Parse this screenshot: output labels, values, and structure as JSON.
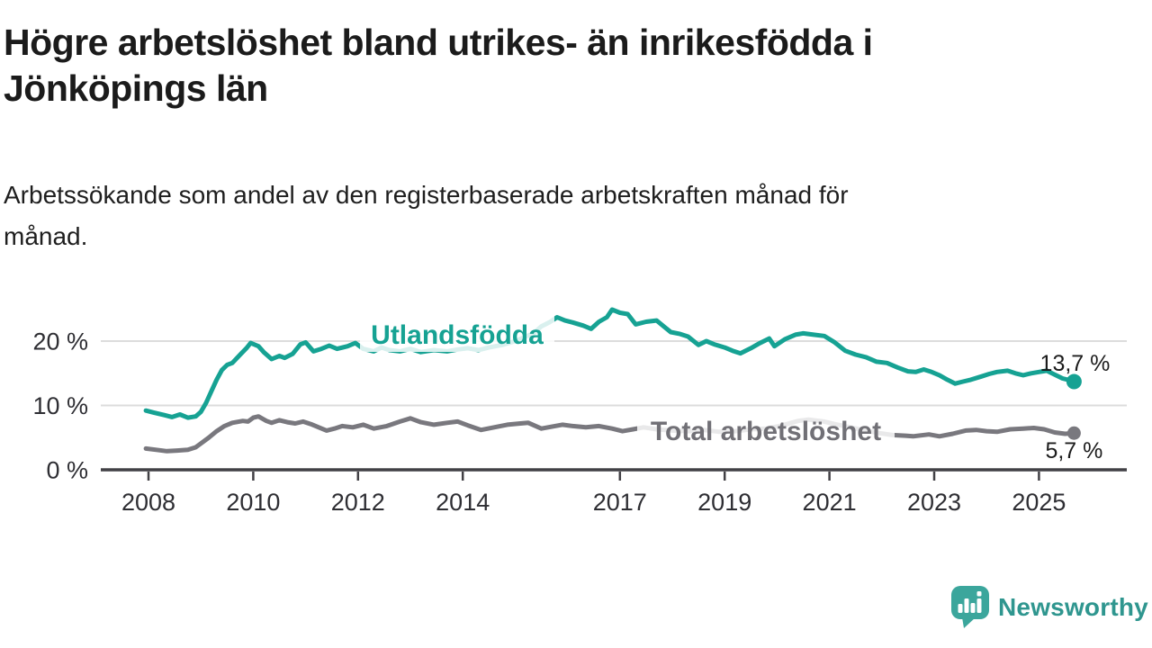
{
  "title": {
    "lines": [
      "Högre arbetslöshet bland utrikes- än inrikesfödda i",
      "Jönköpings län"
    ]
  },
  "subtitle": {
    "lines": [
      "Arbetssökande som andel av den registerbaserade arbetskraften månad för",
      "månad."
    ]
  },
  "branding": {
    "name": "Newsworthy",
    "icon": "speech-bubble-bar-chart-icon",
    "text_color": "#2f968f",
    "icon_color": "#3ba69c"
  },
  "colors": {
    "foreign_born_line": "#16a293",
    "total_line": "#79787e",
    "total_label": "#717076",
    "grid": "#dcdcdc",
    "axis": "#414045"
  },
  "chart_data": {
    "type": "line",
    "title": "Högre arbetslöshet bland utrikes- än inrikesfödda i Jönköpings län",
    "subtitle": "Arbetssökande som andel av den registerbaserade arbetskraften månad för månad.",
    "unit": "%",
    "grid": "horizontal",
    "legend_position": "inline-labels",
    "x_axis": {
      "tick_years": [
        2008,
        2010,
        2012,
        2014,
        2017,
        2019,
        2021,
        2023,
        2025
      ],
      "tick_labels": [
        "2008",
        "2010",
        "2012",
        "2014",
        "2017",
        "2019",
        "2021",
        "2023",
        "2025"
      ],
      "range": [
        2007.1,
        2026.7
      ]
    },
    "y_axis": {
      "ticks": [
        0,
        10,
        20
      ],
      "tick_labels": [
        "0 %",
        "10 %",
        "20 %"
      ],
      "range": [
        0,
        26
      ]
    },
    "series": [
      {
        "name": "Utlandsfödda",
        "color": "#16a293",
        "end_label": "13,7 %",
        "end_value": 13.7,
        "points": [
          [
            2007.95,
            9.2
          ],
          [
            2008.1,
            8.9
          ],
          [
            2008.3,
            8.5
          ],
          [
            2008.45,
            8.2
          ],
          [
            2008.6,
            8.6
          ],
          [
            2008.75,
            8.1
          ],
          [
            2008.9,
            8.3
          ],
          [
            2009.0,
            9.0
          ],
          [
            2009.1,
            10.4
          ],
          [
            2009.2,
            12.2
          ],
          [
            2009.3,
            14.0
          ],
          [
            2009.4,
            15.5
          ],
          [
            2009.5,
            16.3
          ],
          [
            2009.6,
            16.6
          ],
          [
            2009.75,
            17.9
          ],
          [
            2009.87,
            18.9
          ],
          [
            2009.95,
            19.7
          ],
          [
            2010.1,
            19.2
          ],
          [
            2010.2,
            18.3
          ],
          [
            2010.35,
            17.2
          ],
          [
            2010.5,
            17.7
          ],
          [
            2010.6,
            17.4
          ],
          [
            2010.75,
            18.0
          ],
          [
            2010.9,
            19.5
          ],
          [
            2011.0,
            19.8
          ],
          [
            2011.15,
            18.4
          ],
          [
            2011.3,
            18.8
          ],
          [
            2011.45,
            19.3
          ],
          [
            2011.6,
            18.8
          ],
          [
            2011.8,
            19.2
          ],
          [
            2011.95,
            19.7
          ],
          [
            2012.1,
            18.8
          ],
          [
            2012.3,
            18.4
          ],
          [
            2012.45,
            19.0
          ],
          [
            2012.6,
            18.6
          ],
          [
            2012.8,
            18.4
          ],
          [
            2013.0,
            18.8
          ],
          [
            2013.2,
            18.3
          ],
          [
            2013.45,
            18.6
          ],
          [
            2013.7,
            18.4
          ],
          [
            2013.9,
            18.7
          ],
          [
            2014.1,
            18.9
          ],
          [
            2014.3,
            18.6
          ],
          [
            2014.5,
            19.0
          ],
          [
            2014.75,
            19.4
          ],
          [
            2015.0,
            20.0
          ],
          [
            2015.2,
            20.7
          ],
          [
            2015.35,
            21.2
          ],
          [
            2015.5,
            22.3
          ],
          [
            2015.65,
            22.9
          ],
          [
            2015.8,
            23.7
          ],
          [
            2015.95,
            23.2
          ],
          [
            2016.1,
            22.9
          ],
          [
            2016.3,
            22.4
          ],
          [
            2016.45,
            21.9
          ],
          [
            2016.6,
            23.0
          ],
          [
            2016.75,
            23.7
          ],
          [
            2016.85,
            24.9
          ],
          [
            2017.0,
            24.4
          ],
          [
            2017.15,
            24.2
          ],
          [
            2017.3,
            22.6
          ],
          [
            2017.5,
            23.0
          ],
          [
            2017.7,
            23.2
          ],
          [
            2017.85,
            22.2
          ],
          [
            2017.97,
            21.4
          ],
          [
            2018.15,
            21.1
          ],
          [
            2018.3,
            20.7
          ],
          [
            2018.5,
            19.4
          ],
          [
            2018.65,
            20.0
          ],
          [
            2018.8,
            19.5
          ],
          [
            2019.0,
            19.0
          ],
          [
            2019.15,
            18.5
          ],
          [
            2019.3,
            18.1
          ],
          [
            2019.5,
            18.9
          ],
          [
            2019.65,
            19.6
          ],
          [
            2019.85,
            20.4
          ],
          [
            2019.95,
            19.2
          ],
          [
            2020.15,
            20.3
          ],
          [
            2020.35,
            21.0
          ],
          [
            2020.5,
            21.2
          ],
          [
            2020.7,
            21.0
          ],
          [
            2020.9,
            20.8
          ],
          [
            2021.1,
            19.8
          ],
          [
            2021.3,
            18.5
          ],
          [
            2021.5,
            17.9
          ],
          [
            2021.7,
            17.5
          ],
          [
            2021.9,
            16.8
          ],
          [
            2022.1,
            16.6
          ],
          [
            2022.3,
            15.9
          ],
          [
            2022.5,
            15.3
          ],
          [
            2022.65,
            15.2
          ],
          [
            2022.8,
            15.6
          ],
          [
            2022.95,
            15.2
          ],
          [
            2023.1,
            14.7
          ],
          [
            2023.25,
            14.0
          ],
          [
            2023.4,
            13.4
          ],
          [
            2023.55,
            13.7
          ],
          [
            2023.7,
            14.0
          ],
          [
            2023.9,
            14.5
          ],
          [
            2024.05,
            14.9
          ],
          [
            2024.2,
            15.2
          ],
          [
            2024.4,
            15.4
          ],
          [
            2024.55,
            15.0
          ],
          [
            2024.7,
            14.7
          ],
          [
            2024.85,
            15.0
          ],
          [
            2025.0,
            15.2
          ],
          [
            2025.15,
            15.4
          ],
          [
            2025.3,
            14.8
          ],
          [
            2025.45,
            14.2
          ],
          [
            2025.55,
            14.0
          ],
          [
            2025.67,
            13.7
          ]
        ]
      },
      {
        "name": "Total arbetslöshet",
        "color": "#79787e",
        "end_label": "5,7 %",
        "end_value": 5.7,
        "points": [
          [
            2007.95,
            3.3
          ],
          [
            2008.15,
            3.1
          ],
          [
            2008.35,
            2.9
          ],
          [
            2008.55,
            3.0
          ],
          [
            2008.75,
            3.1
          ],
          [
            2008.9,
            3.5
          ],
          [
            2009.0,
            4.1
          ],
          [
            2009.15,
            5.0
          ],
          [
            2009.3,
            6.0
          ],
          [
            2009.45,
            6.8
          ],
          [
            2009.6,
            7.3
          ],
          [
            2009.8,
            7.6
          ],
          [
            2009.9,
            7.5
          ],
          [
            2010.0,
            8.1
          ],
          [
            2010.1,
            8.3
          ],
          [
            2010.25,
            7.6
          ],
          [
            2010.35,
            7.3
          ],
          [
            2010.5,
            7.7
          ],
          [
            2010.65,
            7.4
          ],
          [
            2010.8,
            7.2
          ],
          [
            2010.95,
            7.5
          ],
          [
            2011.1,
            7.1
          ],
          [
            2011.25,
            6.6
          ],
          [
            2011.4,
            6.1
          ],
          [
            2011.55,
            6.4
          ],
          [
            2011.7,
            6.8
          ],
          [
            2011.9,
            6.6
          ],
          [
            2012.1,
            7.0
          ],
          [
            2012.3,
            6.4
          ],
          [
            2012.55,
            6.8
          ],
          [
            2012.8,
            7.5
          ],
          [
            2013.0,
            8.0
          ],
          [
            2013.2,
            7.4
          ],
          [
            2013.45,
            7.0
          ],
          [
            2013.7,
            7.3
          ],
          [
            2013.9,
            7.5
          ],
          [
            2014.1,
            6.9
          ],
          [
            2014.35,
            6.2
          ],
          [
            2014.6,
            6.6
          ],
          [
            2014.85,
            7.0
          ],
          [
            2015.1,
            7.2
          ],
          [
            2015.25,
            7.3
          ],
          [
            2015.5,
            6.4
          ],
          [
            2015.7,
            6.7
          ],
          [
            2015.9,
            7.0
          ],
          [
            2016.1,
            6.8
          ],
          [
            2016.35,
            6.6
          ],
          [
            2016.6,
            6.8
          ],
          [
            2016.85,
            6.4
          ],
          [
            2017.05,
            6.0
          ],
          [
            2017.25,
            6.3
          ],
          [
            2017.45,
            6.6
          ],
          [
            2017.7,
            6.3
          ],
          [
            2018.0,
            6.1
          ],
          [
            2018.3,
            6.0
          ],
          [
            2018.6,
            6.2
          ],
          [
            2018.9,
            5.9
          ],
          [
            2019.2,
            6.0
          ],
          [
            2019.5,
            6.3
          ],
          [
            2019.8,
            6.4
          ],
          [
            2020.1,
            6.9
          ],
          [
            2020.4,
            7.6
          ],
          [
            2020.6,
            7.8
          ],
          [
            2020.9,
            7.5
          ],
          [
            2021.1,
            7.1
          ],
          [
            2021.4,
            6.6
          ],
          [
            2021.7,
            6.1
          ],
          [
            2021.95,
            5.7
          ],
          [
            2022.2,
            5.4
          ],
          [
            2022.45,
            5.3
          ],
          [
            2022.6,
            5.2
          ],
          [
            2022.9,
            5.5
          ],
          [
            2023.1,
            5.2
          ],
          [
            2023.35,
            5.6
          ],
          [
            2023.6,
            6.1
          ],
          [
            2023.8,
            6.2
          ],
          [
            2024.0,
            6.0
          ],
          [
            2024.2,
            5.9
          ],
          [
            2024.45,
            6.3
          ],
          [
            2024.7,
            6.4
          ],
          [
            2024.9,
            6.5
          ],
          [
            2025.1,
            6.3
          ],
          [
            2025.3,
            5.8
          ],
          [
            2025.5,
            5.6
          ],
          [
            2025.67,
            5.7
          ]
        ]
      }
    ]
  }
}
